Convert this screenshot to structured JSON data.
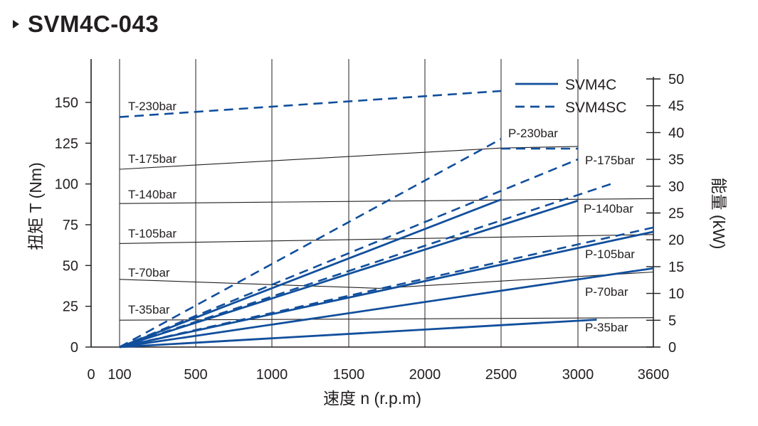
{
  "title": "SVM4C-043",
  "chart_data": {
    "type": "line",
    "title": "SVM4C-043",
    "xlabel": "速度 n  (r.p.m)",
    "ylabel_left": "扭矩 T  (Nm)",
    "ylabel_right": "能量  (kW)",
    "x_ticks": [
      "0",
      "100",
      "500",
      "1000",
      "1500",
      "2000",
      "2500",
      "3000",
      "3600"
    ],
    "x_tick_values": [
      0,
      100,
      500,
      1000,
      1500,
      2000,
      2500,
      3000,
      3600
    ],
    "x_grid_values": [
      100,
      500,
      1000,
      1500,
      2000,
      2500,
      3000
    ],
    "y_left_ticks": [
      0,
      25,
      50,
      75,
      100,
      125,
      150
    ],
    "y_left_range": [
      0,
      175
    ],
    "y_right_ticks": [
      0,
      5,
      10,
      15,
      20,
      25,
      30,
      35,
      40,
      45,
      50
    ],
    "y_right_range": [
      0,
      50
    ],
    "legend": [
      {
        "name": "SVM4C",
        "style": "solid"
      },
      {
        "name": "SVM4SC",
        "style": "dashed"
      }
    ],
    "legend_position": "top-right",
    "line_color": "#114f9c",
    "torque_series": [
      {
        "name": "T-230bar",
        "x": [
          100,
          2500
        ],
        "y": [
          141,
          157
        ],
        "style": "dashed"
      },
      {
        "name": "T-175bar",
        "x": [
          100,
          2500,
          3000
        ],
        "y": [
          109,
          122,
          123
        ],
        "style": "thin"
      },
      {
        "name": "T-140bar",
        "x": [
          100,
          3600
        ],
        "y": [
          88,
          91
        ],
        "style": "thin"
      },
      {
        "name": "T-105bar",
        "x": [
          100,
          3600
        ],
        "y": [
          63.5,
          69
        ],
        "style": "thin"
      },
      {
        "name": "T-70bar",
        "x": [
          100,
          1700,
          3600
        ],
        "y": [
          41.5,
          36,
          46
        ],
        "style": "thin"
      },
      {
        "name": "T-35bar",
        "x": [
          100,
          3600
        ],
        "y": [
          16.5,
          18
        ],
        "style": "thin"
      }
    ],
    "power_series": [
      {
        "name": "P-230bar",
        "x": [
          100,
          2500
        ],
        "y": [
          0,
          38.8
        ],
        "style": "dashed"
      },
      {
        "name": "P-230bar",
        "x": [
          2500,
          3000
        ],
        "y": [
          37,
          37
        ],
        "style": "dashed"
      },
      {
        "name": "P-175bar",
        "x": [
          100,
          2500
        ],
        "y": [
          0,
          27.5
        ],
        "style": "solid"
      },
      {
        "name": "P-175bar",
        "x": [
          100,
          3000
        ],
        "y": [
          0,
          35
        ],
        "style": "dashed"
      },
      {
        "name": "P-140bar",
        "x": [
          100,
          3000
        ],
        "y": [
          0,
          27.3
        ],
        "style": "solid"
      },
      {
        "name": "P-140bar",
        "x": [
          100,
          3300
        ],
        "y": [
          0,
          30.7
        ],
        "style": "dashed"
      },
      {
        "name": "P-105bar",
        "x": [
          100,
          3600
        ],
        "y": [
          0,
          21.5
        ],
        "style": "solid"
      },
      {
        "name": "P-105bar",
        "x": [
          100,
          3600
        ],
        "y": [
          0,
          22.3
        ],
        "style": "dashed"
      },
      {
        "name": "P-70bar",
        "x": [
          100,
          3600
        ],
        "y": [
          0,
          14.7
        ],
        "style": "solid"
      },
      {
        "name": "P-35bar",
        "x": [
          100,
          3150
        ],
        "y": [
          0,
          5.1
        ],
        "style": "solid"
      }
    ],
    "labels": {
      "t230": "T-230bar",
      "t175": "T-175bar",
      "t140": "T-140bar",
      "t105": "T-105bar",
      "t70": "T-70bar",
      "t35": "T-35bar",
      "p230": "P-230bar",
      "p175": "P-175bar",
      "p140": "P-140bar",
      "p105": "P-105bar",
      "p70": "P-70bar",
      "p35": "P-35bar"
    }
  }
}
